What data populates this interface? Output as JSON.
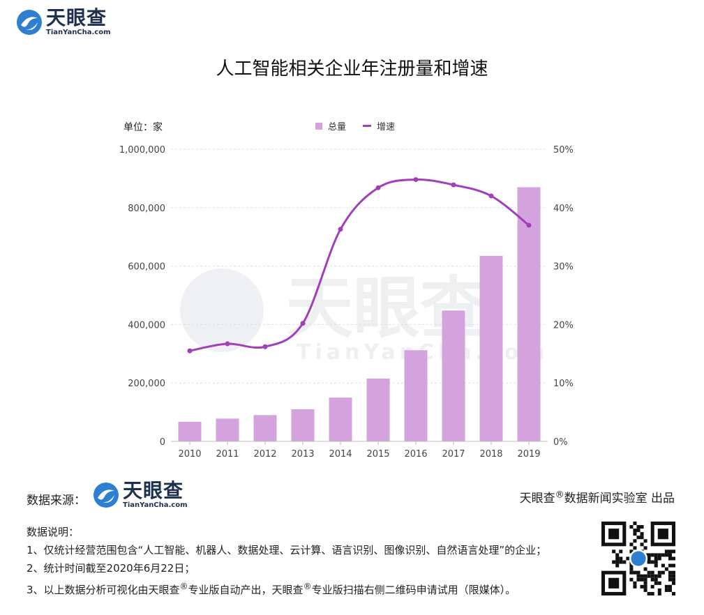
{
  "brand": {
    "name_cn": "天眼查",
    "name_en": "TianYanCha.com"
  },
  "title": "人工智能相关企业年注册量和增速",
  "unit_label": "单位：家",
  "legend": {
    "bar": "总量",
    "line": "增速"
  },
  "colors": {
    "bar": "#d4a3de",
    "line": "#a03fb9",
    "brand": "#1d2f4f",
    "logo_blue": "#2e7fd0"
  },
  "chart_data": {
    "type": "bar",
    "categories": [
      "2010",
      "2011",
      "2012",
      "2013",
      "2014",
      "2015",
      "2016",
      "2017",
      "2018",
      "2019"
    ],
    "series": [
      {
        "name": "总量",
        "type": "bar",
        "axis": "left",
        "values": [
          67000,
          78000,
          90000,
          110000,
          150000,
          215000,
          312000,
          448000,
          635000,
          870000
        ]
      },
      {
        "name": "增速",
        "type": "line",
        "axis": "right",
        "values": [
          15.5,
          16.7,
          16.2,
          20.2,
          36.3,
          43.4,
          44.8,
          43.9,
          42.0,
          37.0
        ]
      }
    ],
    "y_left": {
      "min": 0,
      "max": 1000000,
      "ticks": [
        "0",
        "200,000",
        "400,000",
        "600,000",
        "800,000",
        "1,000,000"
      ]
    },
    "y_right": {
      "min": 0,
      "max": 50,
      "ticks": [
        "0%",
        "10%",
        "20%",
        "30%",
        "40%",
        "50%"
      ]
    },
    "grid": true,
    "legend_position": "top-center"
  },
  "footer": {
    "source_label": "数据来源：",
    "producer": "天眼查",
    "producer_mark": "®",
    "producer_rest": "数据新闻实验室 出品",
    "notes_title": "数据说明：",
    "note1": "1、仅统计经营范围包含“人工智能、机器人、数据处理、云计算、语言识别、图像识别、自然语言处理”的企业；",
    "note2": "2、统计时间截至2020年6月22日；",
    "note3_a": "3、以上数据分析可视化由天眼查",
    "note3_b": "专业版自动产出，天眼查",
    "note3_c": "专业版扫描右侧二维码申请试用（限媒体）。",
    "mark": "®"
  },
  "watermark": {
    "cn": "天眼查",
    "en": "TianYanCha.com"
  }
}
